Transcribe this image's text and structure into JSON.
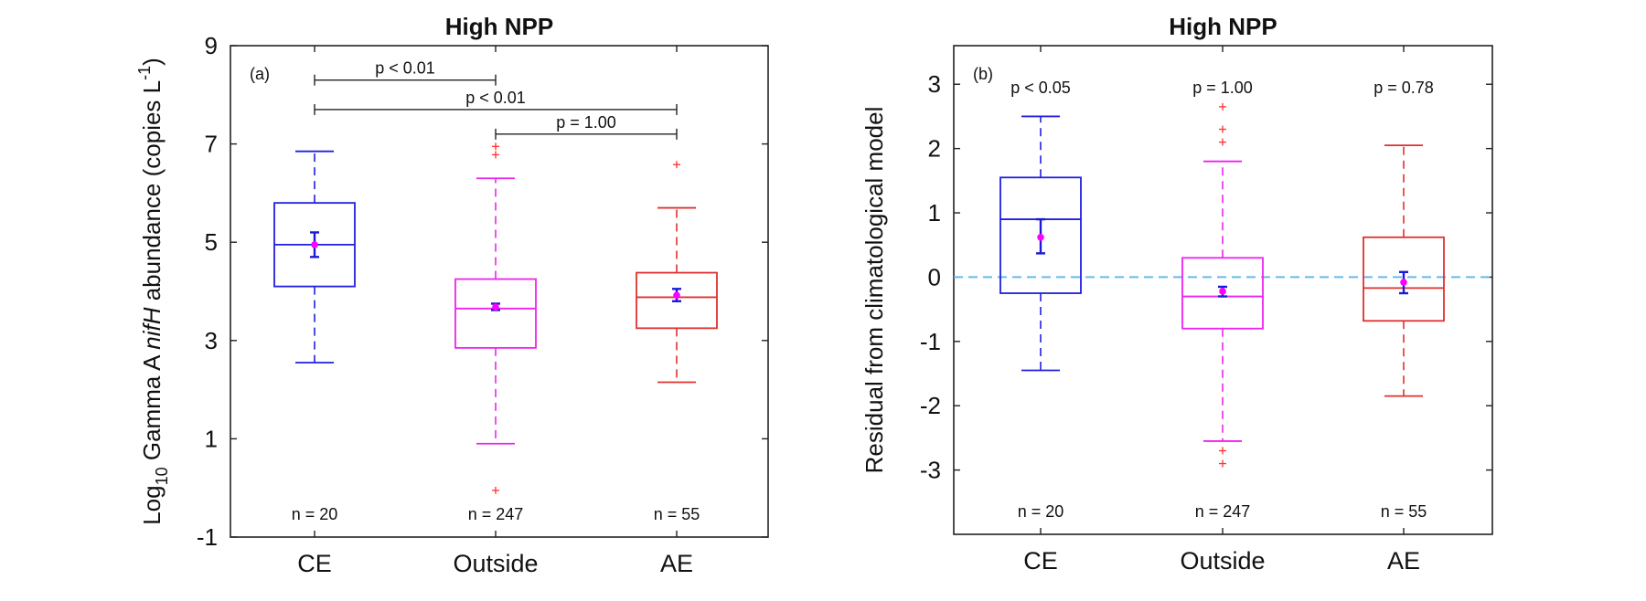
{
  "chart_data": [
    {
      "type": "box",
      "title": "High NPP",
      "panel_label": "(a)",
      "ylabel": {
        "prefix": "Log",
        "sub": "10",
        "middle": " Gamma A ",
        "italic": "nifH",
        "rest": " abundance (copies L",
        "sup": "-1",
        "close": ")"
      },
      "ylim": [
        -1,
        9
      ],
      "yticks": [
        -1,
        1,
        3,
        5,
        7,
        9
      ],
      "categories": [
        "CE",
        "Outside",
        "AE"
      ],
      "colors": [
        "#1f1fe0",
        "#ee22ee",
        "#e03030"
      ],
      "mean_color": "#ff00ff",
      "sem_color": "#1a1ad6",
      "boxes": [
        {
          "whisker_low": 2.55,
          "q1": 4.1,
          "median": 4.95,
          "q3": 5.8,
          "whisker_high": 6.85,
          "mean": 4.95,
          "sem_low": 4.7,
          "sem_high": 5.2,
          "outliers": []
        },
        {
          "whisker_low": 0.9,
          "q1": 2.85,
          "median": 3.65,
          "q3": 4.25,
          "whisker_high": 6.3,
          "mean": 3.68,
          "sem_low": 3.62,
          "sem_high": 3.75,
          "outliers": [
            6.78,
            6.95,
            -0.05
          ]
        },
        {
          "whisker_low": 2.15,
          "q1": 3.25,
          "median": 3.88,
          "q3": 4.38,
          "whisker_high": 5.7,
          "mean": 3.92,
          "sem_low": 3.8,
          "sem_high": 4.05,
          "outliers": [
            6.58
          ]
        }
      ],
      "n_labels": [
        "n = 20",
        "n = 247",
        "n = 55"
      ],
      "significance": [
        {
          "from": 0,
          "to": 1,
          "y": 8.3,
          "label": "p < 0.01"
        },
        {
          "from": 0,
          "to": 2,
          "y": 7.7,
          "label": "p < 0.01"
        },
        {
          "from": 1,
          "to": 2,
          "y": 7.2,
          "label": "p = 1.00"
        }
      ]
    },
    {
      "type": "box",
      "title": "High NPP",
      "panel_label": "(b)",
      "ylabel": {
        "text": "Residual from climatological model"
      },
      "ylim": [
        -4,
        3.6
      ],
      "yticks": [
        -3,
        -2,
        -1,
        0,
        1,
        2,
        3
      ],
      "categories": [
        "CE",
        "Outside",
        "AE"
      ],
      "colors": [
        "#1f1fe0",
        "#ee22ee",
        "#e03030"
      ],
      "mean_color": "#ff00ff",
      "sem_color": "#1a1ad6",
      "reference_line": {
        "y": 0,
        "color": "#66bbee",
        "style": "dashed"
      },
      "boxes": [
        {
          "whisker_low": -1.45,
          "q1": -0.25,
          "median": 0.9,
          "q3": 1.55,
          "whisker_high": 2.5,
          "mean": 0.62,
          "sem_low": 0.37,
          "sem_high": 0.9,
          "outliers": []
        },
        {
          "whisker_low": -2.55,
          "q1": -0.8,
          "median": -0.3,
          "q3": 0.3,
          "whisker_high": 1.8,
          "mean": -0.22,
          "sem_low": -0.3,
          "sem_high": -0.15,
          "outliers": [
            2.65,
            2.3,
            2.1,
            -2.7,
            -2.9
          ]
        },
        {
          "whisker_low": -1.85,
          "q1": -0.68,
          "median": -0.17,
          "q3": 0.62,
          "whisker_high": 2.05,
          "mean": -0.08,
          "sem_low": -0.25,
          "sem_high": 0.08,
          "outliers": []
        }
      ],
      "n_labels": [
        "n = 20",
        "n = 247",
        "n = 55"
      ],
      "p_labels": [
        "p < 0.05",
        "p = 1.00",
        "p = 0.78"
      ]
    }
  ]
}
